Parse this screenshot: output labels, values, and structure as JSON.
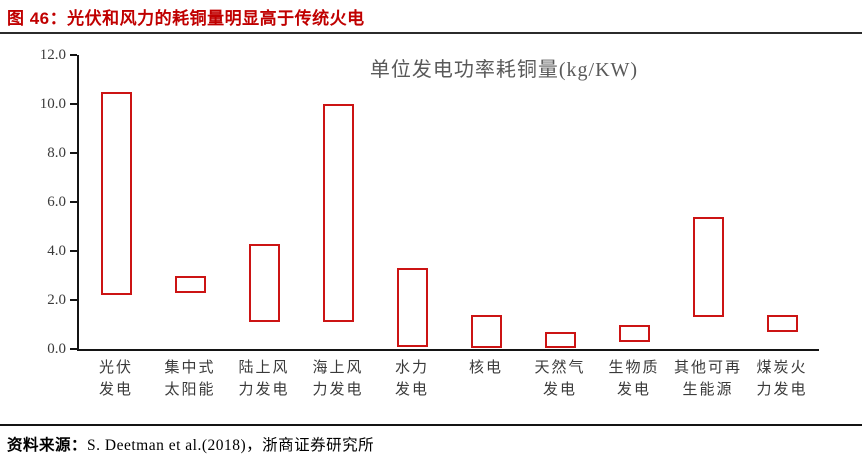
{
  "header": {
    "title": "图  46：光伏和风力的耗铜量明显高于传统火电"
  },
  "footer": {
    "prefix": "资料来源：",
    "source": "S. Deetman et al.(2018)，浙商证券研究所"
  },
  "colors": {
    "header_red": "#c00000",
    "bar_border_red": "#cc1414",
    "bar_fill": "#ffffff",
    "axis_black": "#141414",
    "tick_label_gray": "#3a3a3a",
    "chart_title_gray": "#595959"
  },
  "chart_data": {
    "type": "bar",
    "subtype": "floating-range-bar",
    "title": "单位发电功率耗铜量(kg/KW)",
    "categories": [
      "光伏发电",
      "集中式太阳能",
      "陆上风力发电",
      "海上风力发电",
      "水力发电",
      "核电",
      "天然气发电",
      "生物质发电",
      "其他可再生能源",
      "煤炭火力发电"
    ],
    "category_label_lines": [
      [
        "光伏",
        "发电"
      ],
      [
        "集中式",
        "太阳能"
      ],
      [
        "陆上风",
        "力发电"
      ],
      [
        "海上风",
        "力发电"
      ],
      [
        "水力",
        "发电"
      ],
      [
        "核电"
      ],
      [
        "天然气",
        "发电"
      ],
      [
        "生物质",
        "发电"
      ],
      [
        "其他可再",
        "生能源"
      ],
      [
        "煤炭火",
        "力发电"
      ]
    ],
    "series": [
      {
        "name": "单位发电功率耗铜量范围",
        "ranges": [
          [
            2.2,
            10.5
          ],
          [
            2.3,
            3.0
          ],
          [
            1.1,
            4.3
          ],
          [
            1.1,
            10.0
          ],
          [
            0.1,
            3.3
          ],
          [
            0.05,
            1.4
          ],
          [
            0.05,
            0.7
          ],
          [
            0.3,
            1.0
          ],
          [
            1.3,
            5.4
          ],
          [
            0.7,
            1.4
          ]
        ]
      }
    ],
    "ylim": [
      0,
      12
    ],
    "ytick_step": 2,
    "ytick_labels": [
      "0.0",
      "2.0",
      "4.0",
      "6.0",
      "8.0",
      "10.0",
      "12.0"
    ],
    "xlabel": "",
    "ylabel": "",
    "grid": false,
    "legend": "none"
  }
}
